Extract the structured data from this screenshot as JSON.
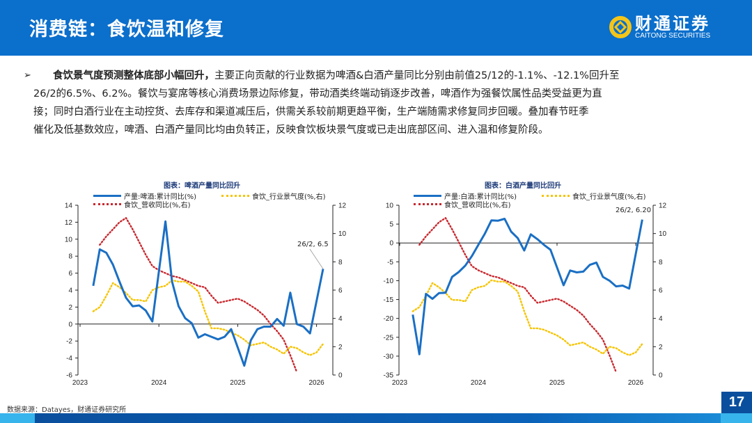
{
  "header": {
    "title": "消费链：食饮温和修复",
    "logo_cn": "财通证券",
    "logo_en": "CAITONG SECURITIES",
    "brand_color": "#0b6fcc",
    "logo_color": "#f5c518"
  },
  "body": {
    "lead": "食饮景气度预测整体底部小幅回升，",
    "text1": "主要正向贡献的行业数据为啤酒&白酒产量同比分别由前值25/12的-1.1%、-12.1%回升至",
    "text2": "26/2的6.5%、6.2%。餐饮与宴席等核心消费场景边际修复，带动酒类终端动销逐步改善，啤酒作为强餐饮属性品类受益更为直",
    "text3": "接；同时白酒行业在主动控货、去库存和渠道减压后，供需关系较前期更趋平衡，生产端随需求修复同步回暖。叠加春节旺季",
    "text4": "催化及低基数效应，啤酒、白酒产量同比均由负转正，反映食饮板块景气度或已走出底部区间、进入温和修复阶段。"
  },
  "footer": {
    "source": "数据来源：Datayes，财通证券研究所",
    "page": "17"
  },
  "chart_data": [
    {
      "type": "line",
      "title": "图表：啤酒产量同比回升",
      "x_ticks": [
        "2023",
        "2024",
        "2025",
        "2026"
      ],
      "ylim": [
        -6,
        14
      ],
      "yticks": [
        "-6",
        "-4",
        "-2",
        "0",
        "2",
        "4",
        "6",
        "8",
        "10",
        "12",
        "14"
      ],
      "y2lim": [
        0,
        12
      ],
      "y2ticks": [
        "0",
        "2",
        "4",
        "6",
        "8",
        "10",
        "12"
      ],
      "annotation": "26/2, 6.5",
      "legend_placement": "top",
      "series": [
        {
          "name": "产量:啤酒:累计同比(%)",
          "axis": "left",
          "color": "#1a6fc4",
          "style": "solid",
          "x": [
            "2023-03",
            "2023-04",
            "2023-05",
            "2023-06",
            "2023-07",
            "2023-08",
            "2023-09",
            "2023-10",
            "2023-11",
            "2023-12",
            "2024-02",
            "2024-03",
            "2024-04",
            "2024-05",
            "2024-06",
            "2024-07",
            "2024-08",
            "2024-09",
            "2024-10",
            "2024-11",
            "2024-12",
            "2025-02",
            "2025-03",
            "2025-04",
            "2025-05",
            "2025-06",
            "2025-07",
            "2025-08",
            "2025-09",
            "2025-10",
            "2025-11",
            "2025-12",
            "2026-02"
          ],
          "y": [
            4.5,
            8.8,
            8.4,
            7.0,
            5.0,
            3.1,
            2.1,
            2.2,
            1.6,
            0.3,
            12.1,
            5.0,
            2.1,
            0.7,
            0.1,
            -1.6,
            -1.2,
            -1.5,
            -1.8,
            -1.5,
            -0.6,
            -4.9,
            -1.9,
            -0.6,
            -0.3,
            -0.3,
            0.6,
            -0.2,
            3.7,
            0.0,
            -0.3,
            -1.1,
            6.5
          ]
        },
        {
          "name": "食饮_行业景气度(%,右)",
          "axis": "right",
          "color": "#f5c400",
          "style": "dotted",
          "x": [
            "2023-03",
            "2023-04",
            "2023-05",
            "2023-06",
            "2023-07",
            "2023-08",
            "2023-09",
            "2023-10",
            "2023-11",
            "2023-12",
            "2024-01",
            "2024-02",
            "2024-03",
            "2024-04",
            "2024-05",
            "2024-06",
            "2024-07",
            "2024-08",
            "2024-09",
            "2024-10",
            "2024-11",
            "2024-12",
            "2025-01",
            "2025-02",
            "2025-03",
            "2025-04",
            "2025-05",
            "2025-06",
            "2025-07",
            "2025-08",
            "2025-09",
            "2025-10",
            "2025-11",
            "2025-12",
            "2026-01",
            "2026-02"
          ],
          "y": [
            4.5,
            4.8,
            5.6,
            6.5,
            6.2,
            5.8,
            5.3,
            5.3,
            5.2,
            6.0,
            6.2,
            6.3,
            6.7,
            6.6,
            6.6,
            6.3,
            5.9,
            4.5,
            3.3,
            3.3,
            3.2,
            3.0,
            2.8,
            2.5,
            2.1,
            2.2,
            2.3,
            2.0,
            1.8,
            1.5,
            2.0,
            1.9,
            1.6,
            1.4,
            1.6,
            2.2
          ]
        },
        {
          "name": "食饮_营收同比(%,右)",
          "axis": "right",
          "color": "#c8282e",
          "style": "dotted",
          "x": [
            "2023-04",
            "2023-05",
            "2023-06",
            "2023-07",
            "2023-08",
            "2023-09",
            "2023-10",
            "2023-11",
            "2023-12",
            "2024-01",
            "2024-02",
            "2024-03",
            "2024-04",
            "2024-05",
            "2024-06",
            "2024-07",
            "2024-08",
            "2024-09",
            "2024-10",
            "2024-11",
            "2024-12",
            "2025-01",
            "2025-02",
            "2025-03",
            "2025-04",
            "2025-05",
            "2025-06",
            "2025-07",
            "2025-08",
            "2025-09",
            "2025-10"
          ],
          "y": [
            9.2,
            9.8,
            10.3,
            10.8,
            11.1,
            10.3,
            9.4,
            8.5,
            7.7,
            7.4,
            7.2,
            7.0,
            6.9,
            6.7,
            6.5,
            6.3,
            6.2,
            5.6,
            5.1,
            5.2,
            5.3,
            5.4,
            5.2,
            4.9,
            4.6,
            4.2,
            3.6,
            3.1,
            2.5,
            1.4,
            0.2
          ]
        }
      ]
    },
    {
      "type": "line",
      "title": "图表：白酒产量同比回升",
      "x_ticks": [
        "2023",
        "2024",
        "2025",
        "2026"
      ],
      "ylim": [
        -35,
        10
      ],
      "yticks": [
        "-35",
        "-30",
        "-25",
        "-20",
        "-15",
        "-10",
        "-5",
        "0",
        "5",
        "10"
      ],
      "y2lim": [
        0,
        12
      ],
      "y2ticks": [
        "0",
        "2",
        "4",
        "6",
        "8",
        "10",
        "12"
      ],
      "annotation": "26/2, 6.20",
      "legend_placement": "top",
      "series": [
        {
          "name": "产量:白酒:累计同比(%)",
          "axis": "left",
          "color": "#1a6fc4",
          "style": "solid",
          "x": [
            "2023-03",
            "2023-04",
            "2023-05",
            "2023-06",
            "2023-07",
            "2023-08",
            "2023-09",
            "2023-10",
            "2023-11",
            "2023-12",
            "2024-01",
            "2024-02",
            "2024-03",
            "2024-04",
            "2024-05",
            "2024-06",
            "2024-07",
            "2024-08",
            "2024-09",
            "2024-10",
            "2024-11",
            "2024-12",
            "2025-02",
            "2025-03",
            "2025-04",
            "2025-05",
            "2025-06",
            "2025-07",
            "2025-08",
            "2025-09",
            "2025-10",
            "2025-11",
            "2025-12",
            "2026-02"
          ],
          "y": [
            -19,
            -29.5,
            -13.5,
            -14.8,
            -13.3,
            -13.2,
            -9,
            -7.7,
            -6,
            -3.5,
            -0.5,
            2.5,
            6,
            5.9,
            6.4,
            3,
            1.3,
            -2,
            2.3,
            1,
            -0.5,
            -1.8,
            -11.2,
            -7.3,
            -7.8,
            -7.6,
            -5.8,
            -5.2,
            -9,
            -10,
            -11.5,
            -11.3,
            -12.1,
            6.2
          ]
        },
        {
          "name": "食饮_行业景气度(%,右)",
          "axis": "right",
          "color": "#f5c400",
          "style": "dotted",
          "x": [
            "2023-03",
            "2023-04",
            "2023-05",
            "2023-06",
            "2023-07",
            "2023-08",
            "2023-09",
            "2023-10",
            "2023-11",
            "2023-12",
            "2024-01",
            "2024-02",
            "2024-03",
            "2024-04",
            "2024-05",
            "2024-06",
            "2024-07",
            "2024-08",
            "2024-09",
            "2024-10",
            "2024-11",
            "2024-12",
            "2025-01",
            "2025-02",
            "2025-03",
            "2025-04",
            "2025-05",
            "2025-06",
            "2025-07",
            "2025-08",
            "2025-09",
            "2025-10",
            "2025-11",
            "2025-12",
            "2026-01",
            "2026-02"
          ],
          "y": [
            4.5,
            4.8,
            5.6,
            6.5,
            6.2,
            5.8,
            5.3,
            5.3,
            5.2,
            6.0,
            6.2,
            6.3,
            6.7,
            6.6,
            6.6,
            6.3,
            5.9,
            4.5,
            3.3,
            3.3,
            3.2,
            3.0,
            2.8,
            2.5,
            2.1,
            2.2,
            2.3,
            2.0,
            1.8,
            1.5,
            2.0,
            1.9,
            1.6,
            1.4,
            1.6,
            2.2
          ]
        },
        {
          "name": "食饮_营收同比(%,右)",
          "axis": "right",
          "color": "#c8282e",
          "style": "dotted",
          "x": [
            "2023-04",
            "2023-05",
            "2023-06",
            "2023-07",
            "2023-08",
            "2023-09",
            "2023-10",
            "2023-11",
            "2023-12",
            "2024-01",
            "2024-02",
            "2024-03",
            "2024-04",
            "2024-05",
            "2024-06",
            "2024-07",
            "2024-08",
            "2024-09",
            "2024-10",
            "2024-11",
            "2024-12",
            "2025-01",
            "2025-02",
            "2025-03",
            "2025-04",
            "2025-05",
            "2025-06",
            "2025-07",
            "2025-08",
            "2025-09",
            "2025-10"
          ],
          "y": [
            9.2,
            9.8,
            10.3,
            10.8,
            11.1,
            10.3,
            9.4,
            8.5,
            7.7,
            7.4,
            7.2,
            7.0,
            6.9,
            6.7,
            6.5,
            6.3,
            6.2,
            5.6,
            5.1,
            5.2,
            5.3,
            5.4,
            5.2,
            4.9,
            4.6,
            4.2,
            3.6,
            3.1,
            2.5,
            1.4,
            0.2
          ]
        }
      ]
    }
  ]
}
